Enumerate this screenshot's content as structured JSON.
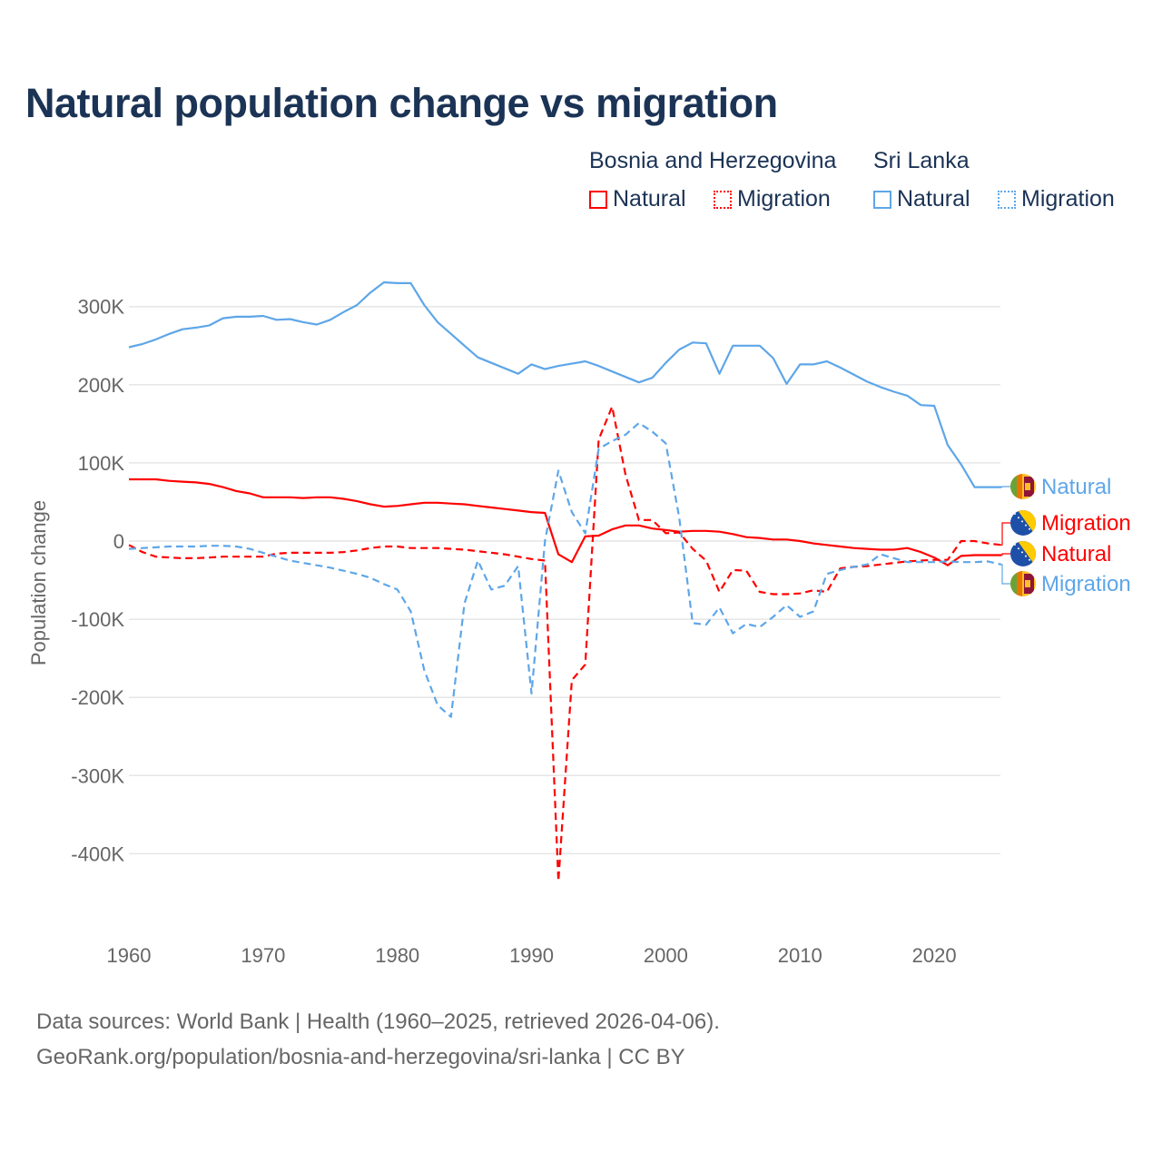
{
  "title": "Natural population change vs migration",
  "legend": {
    "groups": [
      {
        "country": "Bosnia and Herzegovina",
        "items": [
          "Natural",
          "Migration"
        ],
        "color": "#ff0000"
      },
      {
        "country": "Sri Lanka",
        "items": [
          "Natural",
          "Migration"
        ],
        "color": "#5ea6e8"
      }
    ]
  },
  "footer": {
    "line1": "Data sources: World Bank | Health (1960–2025, retrieved 2026-04-06).",
    "line2": "GeoRank.org/population/bosnia-and-herzegovina/sri-lanka | CC BY"
  },
  "chart_data": {
    "type": "line",
    "title": "Natural population change vs migration",
    "xlabel": "",
    "ylabel": "Population change",
    "xlim": [
      1960,
      2025
    ],
    "ylim": [
      -450000,
      340000
    ],
    "xticks": [
      "1960",
      "1970",
      "1980",
      "1990",
      "2000",
      "2010",
      "2020"
    ],
    "yticks": [
      "300K",
      "200K",
      "100K",
      "0",
      "-100K",
      "-200K",
      "-300K",
      "-400K"
    ],
    "ytick_values": [
      300,
      200,
      100,
      0,
      -100,
      -200,
      -300,
      -400
    ],
    "units": "thousands",
    "x_start": 1960,
    "series": [
      {
        "name": "Sri Lanka Natural",
        "country": "Sri Lanka",
        "kind": "Natural",
        "color": "#5ea6e8",
        "dashed": false,
        "end_label": "Natural",
        "flag": "sri-lanka",
        "values": [
          248,
          252,
          258,
          265,
          271,
          273,
          276,
          285,
          287,
          287,
          288,
          283,
          284,
          280,
          277,
          283,
          293,
          302,
          318,
          331,
          330,
          330,
          302,
          280,
          265,
          250,
          235,
          228,
          221,
          214,
          226,
          220,
          224,
          227,
          230,
          224,
          217,
          210,
          203,
          209,
          228,
          245,
          254,
          253,
          214,
          250,
          250,
          250,
          234,
          201,
          226,
          226,
          230,
          222,
          213,
          204,
          197,
          191,
          186,
          174,
          173,
          123,
          98,
          69,
          69,
          69
        ]
      },
      {
        "name": "Bosnia and Herzegovina Migration",
        "country": "Bosnia and Herzegovina",
        "kind": "Migration",
        "color": "#ff0000",
        "dashed": true,
        "end_label": "Migration",
        "flag": "bosnia",
        "values": [
          -5,
          -14,
          -20,
          -21,
          -22,
          -22,
          -21,
          -20,
          -20,
          -20,
          -20,
          -16,
          -15,
          -15,
          -15,
          -15,
          -14,
          -12,
          -9,
          -7,
          -7,
          -9,
          -9,
          -9,
          -10,
          -11,
          -13,
          -15,
          -17,
          -20,
          -23,
          -25,
          -435,
          -178,
          -158,
          130,
          172,
          85,
          27,
          27,
          10,
          11,
          -10,
          -25,
          -65,
          -37,
          -38,
          -65,
          -68,
          -68,
          -67,
          -63,
          -65,
          -35,
          -33,
          -32,
          -30,
          -28,
          -26,
          -25,
          -24,
          -24,
          0,
          0,
          -3,
          -5
        ]
      },
      {
        "name": "Bosnia and Herzegovina Natural",
        "country": "Bosnia and Herzegovina",
        "kind": "Natural",
        "color": "#ff0000",
        "dashed": false,
        "end_label": "Natural",
        "flag": "bosnia",
        "values": [
          79,
          79,
          79,
          77,
          76,
          75,
          73,
          69,
          64,
          61,
          56,
          56,
          56,
          55,
          56,
          56,
          54,
          51,
          47,
          44,
          45,
          47,
          49,
          49,
          48,
          47,
          45,
          43,
          41,
          39,
          37,
          36,
          -17,
          -27,
          6,
          7,
          15,
          20,
          20,
          16,
          14,
          12,
          13,
          13,
          12,
          9,
          5,
          4,
          2,
          2,
          0,
          -3,
          -5,
          -7,
          -9,
          -10,
          -11,
          -11,
          -9,
          -14,
          -21,
          -31,
          -19,
          -18,
          -18,
          -18
        ]
      },
      {
        "name": "Sri Lanka Migration",
        "country": "Sri Lanka",
        "kind": "Migration",
        "color": "#5ea6e8",
        "dashed": true,
        "end_label": "Migration",
        "flag": "sri-lanka",
        "values": [
          -10,
          -9,
          -8,
          -7,
          -7,
          -7,
          -6,
          -6,
          -7,
          -10,
          -15,
          -20,
          -25,
          -28,
          -31,
          -34,
          -38,
          -42,
          -47,
          -55,
          -62,
          -90,
          -165,
          -210,
          -225,
          -80,
          -25,
          -62,
          -57,
          -32,
          -195,
          0,
          90,
          37,
          10,
          118,
          128,
          136,
          151,
          140,
          125,
          30,
          -105,
          -107,
          -85,
          -118,
          -106,
          -110,
          -97,
          -82,
          -97,
          -90,
          -42,
          -37,
          -33,
          -30,
          -17,
          -22,
          -27,
          -27,
          -27,
          -26,
          -27,
          -27,
          -26,
          -30
        ]
      }
    ]
  }
}
